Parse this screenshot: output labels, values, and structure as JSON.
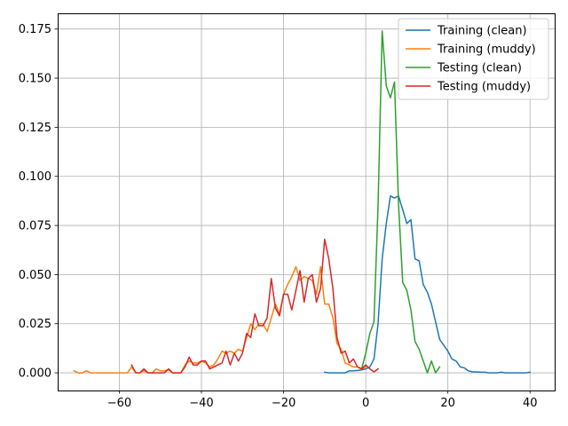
{
  "chart_data": {
    "type": "line",
    "title": "",
    "xlabel": "",
    "ylabel": "",
    "xlim": [
      -75,
      46
    ],
    "ylim": [
      -0.009,
      0.183
    ],
    "xticks": [
      -60,
      -40,
      -20,
      0,
      20,
      40
    ],
    "xtick_labels": [
      "−60",
      "−40",
      "−20",
      "0",
      "20",
      "40"
    ],
    "yticks": [
      0.0,
      0.025,
      0.05,
      0.075,
      0.1,
      0.125,
      0.15,
      0.175
    ],
    "ytick_labels": [
      "0.000",
      "0.025",
      "0.050",
      "0.075",
      "0.100",
      "0.125",
      "0.150",
      "0.175"
    ],
    "grid": true,
    "legend_position": "top-right",
    "series": [
      {
        "name": "Training (clean)",
        "color": "#1f77b4",
        "x": [
          -10,
          -9,
          -8,
          -7,
          -6,
          -5,
          -4,
          -3,
          -2,
          -1,
          0,
          1,
          2,
          3,
          4,
          5,
          6,
          7,
          8,
          9,
          10,
          11,
          12,
          13,
          14,
          15,
          16,
          17,
          18,
          19,
          20,
          21,
          22,
          23,
          24,
          25,
          26,
          27,
          28,
          29,
          30,
          31,
          32,
          33,
          34,
          35,
          36,
          37,
          38,
          39,
          40
        ],
        "y": [
          0.0003,
          0,
          0,
          0,
          0,
          0,
          0.001,
          0.001,
          0.0012,
          0.0015,
          0.002,
          0.003,
          0.007,
          0.025,
          0.058,
          0.076,
          0.09,
          0.089,
          0.09,
          0.083,
          0.076,
          0.078,
          0.058,
          0.057,
          0.045,
          0.041,
          0.035,
          0.026,
          0.017,
          0.014,
          0.011,
          0.007,
          0.006,
          0.003,
          0.0025,
          0.001,
          0.0005,
          0.0005,
          0.0003,
          0.0003,
          0,
          0,
          0,
          0.0003,
          0,
          0,
          0,
          0,
          0,
          0,
          0.0003
        ]
      },
      {
        "name": "Training (muddy)",
        "color": "#ff7f0e",
        "x": [
          -71,
          -70,
          -69,
          -68,
          -67,
          -66,
          -65,
          -64,
          -63,
          -62,
          -61,
          -60,
          -59,
          -58,
          -57,
          -56,
          -55,
          -54,
          -53,
          -52,
          -51,
          -50,
          -49,
          -48,
          -47,
          -46,
          -45,
          -44,
          -43,
          -42,
          -41,
          -40,
          -39,
          -38,
          -37,
          -36,
          -35,
          -34,
          -33,
          -32,
          -31,
          -30,
          -29,
          -28,
          -27,
          -26,
          -25,
          -24,
          -23,
          -22,
          -21,
          -20,
          -19,
          -18,
          -17,
          -16,
          -15,
          -14,
          -13,
          -12,
          -11,
          -10,
          -9,
          -8,
          -7,
          -6,
          -5,
          -4,
          -3,
          -2,
          -1,
          0
        ],
        "y": [
          0.001,
          0,
          0,
          0.001,
          0,
          0,
          0,
          0,
          0,
          0,
          0,
          0,
          0,
          0,
          0.003,
          0,
          0,
          0.001,
          0,
          0,
          0.002,
          0.001,
          0.001,
          0.0015,
          0,
          0,
          0,
          0.004,
          0.006,
          0.005,
          0.005,
          0.006,
          0.005,
          0.003,
          0.004,
          0.007,
          0.011,
          0.01,
          0.011,
          0.01,
          0.012,
          0.011,
          0.018,
          0.025,
          0.022,
          0.025,
          0.025,
          0.021,
          0.028,
          0.035,
          0.03,
          0.04,
          0.045,
          0.049,
          0.054,
          0.047,
          0.049,
          0.048,
          0.047,
          0.04,
          0.054,
          0.035,
          0.035,
          0.028,
          0.015,
          0.012,
          0.005,
          0.004,
          0.003,
          0.003,
          0.002,
          0.003
        ]
      },
      {
        "name": "Testing (clean)",
        "color": "#2ca02c",
        "x": [
          -1,
          0,
          1,
          2,
          3,
          4,
          5,
          6,
          7,
          8,
          9,
          10,
          11,
          12,
          13,
          14,
          15,
          16,
          17,
          18
        ],
        "y": [
          0.002,
          0.01,
          0.02,
          0.026,
          0.085,
          0.174,
          0.146,
          0.14,
          0.148,
          0.085,
          0.046,
          0.042,
          0.032,
          0.016,
          0.012,
          0.006,
          0,
          0.006,
          0,
          0.003
        ]
      },
      {
        "name": "Testing (muddy)",
        "color": "#d62728",
        "x": [
          -57,
          -56,
          -55,
          -54,
          -53,
          -52,
          -51,
          -50,
          -49,
          -48,
          -47,
          -46,
          -45,
          -44,
          -43,
          -42,
          -41,
          -40,
          -39,
          -38,
          -37,
          -36,
          -35,
          -34,
          -33,
          -32,
          -31,
          -30,
          -29,
          -28,
          -27,
          -26,
          -25,
          -24,
          -23,
          -22,
          -21,
          -20,
          -19,
          -18,
          -17,
          -16,
          -15,
          -14,
          -13,
          -12,
          -11,
          -10,
          -9,
          -8,
          -7,
          -6,
          -5,
          -4,
          -3,
          -2,
          -1,
          0,
          1,
          2,
          3
        ],
        "y": [
          0.004,
          0,
          0,
          0.002,
          0,
          0,
          0,
          0,
          0,
          0.002,
          0,
          0,
          0,
          0.003,
          0.008,
          0.004,
          0.004,
          0.006,
          0.006,
          0.002,
          0.003,
          0.004,
          0.005,
          0.011,
          0.004,
          0.01,
          0.006,
          0.01,
          0.02,
          0.018,
          0.03,
          0.024,
          0.024,
          0.028,
          0.048,
          0.033,
          0.029,
          0.04,
          0.04,
          0.032,
          0.042,
          0.052,
          0.036,
          0.048,
          0.05,
          0.036,
          0.043,
          0.068,
          0.058,
          0.043,
          0.018,
          0.01,
          0.011,
          0.005,
          0.007,
          0.003,
          0.002,
          0.004,
          0.002,
          0.0005,
          0.002
        ]
      }
    ]
  }
}
